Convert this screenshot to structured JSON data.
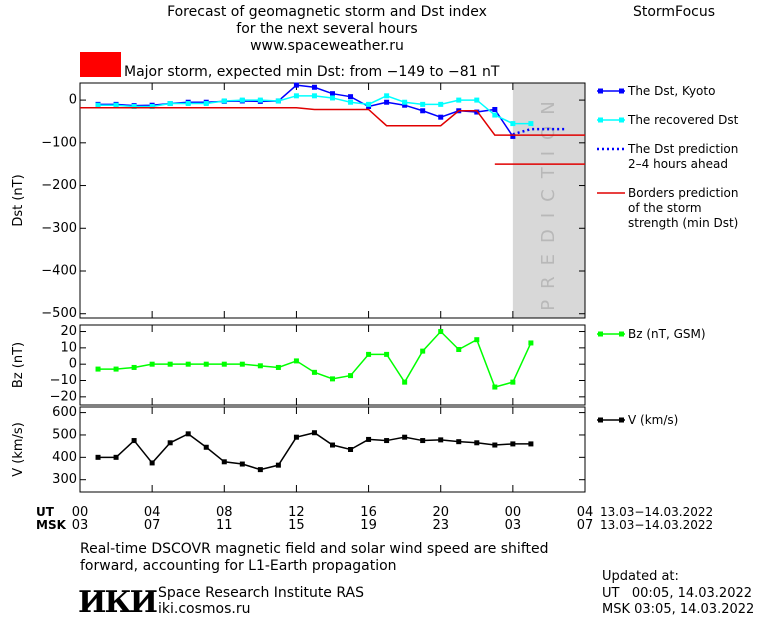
{
  "header": {
    "title_lines": [
      "Forecast of geomagnetic storm and Dst index",
      "for the next several hours",
      "www.spaceweather.ru"
    ],
    "brand": "StormFocus",
    "alert_color": "#ff0000",
    "alert_text": "Major storm, expected min Dst: from −149 to −81 nT"
  },
  "chart_data": [
    {
      "type": "line",
      "ylabel": "Dst (nT)",
      "xlim": [
        0,
        28
      ],
      "xticks": [
        0,
        4,
        8,
        12,
        16,
        20,
        24,
        28
      ],
      "ylim": [
        -510,
        40
      ],
      "yticks": [
        0,
        {
          "value": -100,
          "label": "−100"
        },
        {
          "value": -200,
          "label": "−200"
        },
        {
          "value": -300,
          "label": "−300"
        },
        {
          "value": -400,
          "label": "−400"
        },
        {
          "value": -500,
          "label": "−500"
        }
      ],
      "prediction_region": [
        24,
        28
      ],
      "prediction_label": "PREDICTION",
      "series": [
        {
          "name": "The Dst, Kyoto",
          "color": "#0000ff",
          "marker": "square",
          "dashed": false,
          "x": [
            1,
            2,
            3,
            4,
            5,
            6,
            7,
            8,
            9,
            10,
            11,
            12,
            13,
            14,
            15,
            16,
            17,
            18,
            19,
            20,
            21,
            22,
            23,
            24
          ],
          "values": [
            -10,
            -10,
            -13,
            -12,
            -8,
            -5,
            -5,
            -3,
            -2,
            -3,
            -2,
            35,
            30,
            15,
            8,
            -15,
            -5,
            -12,
            -25,
            -40,
            -25,
            -28,
            -22,
            -85
          ]
        },
        {
          "name": "The recovered Dst",
          "color": "#00ffff",
          "marker": "square",
          "dashed": false,
          "x": [
            1,
            2,
            3,
            4,
            5,
            6,
            7,
            8,
            9,
            10,
            11,
            12,
            13,
            14,
            15,
            16,
            17,
            18,
            19,
            20,
            21,
            22,
            23,
            24,
            25
          ],
          "values": [
            -12,
            -12,
            -15,
            -15,
            -8,
            -8,
            -8,
            -2,
            0,
            0,
            -2,
            10,
            10,
            5,
            -5,
            -10,
            10,
            -5,
            -10,
            -10,
            0,
            0,
            -35,
            -55,
            -55
          ]
        },
        {
          "name": "The Dst prediction\n2–4 hours ahead",
          "color": "#0000ff",
          "marker": "none",
          "dashed": true,
          "x": [
            24,
            25,
            26,
            27
          ],
          "values": [
            -80,
            -68,
            -68,
            -68
          ]
        },
        {
          "name": "Borders prediction\nof the storm\nstrength (min Dst)",
          "color": "#e00000",
          "marker": "none",
          "dashed": false,
          "x": [
            0,
            12,
            13,
            16,
            17,
            20,
            21,
            22,
            23,
            28,
            28,
            23,
            28
          ],
          "values": [
            -18,
            -18,
            -22,
            -22,
            -60,
            -60,
            -25,
            -25,
            -82,
            -82,
            null,
            -150,
            -150
          ]
        }
      ]
    },
    {
      "type": "line",
      "ylabel": "Bz (nT)",
      "xlim": [
        0,
        28
      ],
      "xticks": [
        0,
        4,
        8,
        12,
        16,
        20,
        24,
        28
      ],
      "ylim": [
        -25,
        24
      ],
      "yticks": [
        20,
        10,
        0,
        {
          "value": -10,
          "label": "−10"
        },
        {
          "value": -20,
          "label": "−20"
        }
      ],
      "series": [
        {
          "name": "Bz (nT, GSM)",
          "color": "#00ff00",
          "marker": "square",
          "dashed": false,
          "x": [
            1,
            2,
            3,
            4,
            5,
            6,
            7,
            8,
            9,
            10,
            11,
            12,
            13,
            14,
            15,
            16,
            17,
            18,
            19,
            20,
            21,
            22,
            23,
            24,
            25
          ],
          "values": [
            -3,
            -3,
            -2,
            0,
            0,
            0,
            0,
            0,
            0,
            -1,
            -2,
            2,
            -5,
            -9,
            -7,
            6,
            6,
            -11,
            8,
            20,
            9,
            15,
            -14,
            -11,
            13
          ]
        }
      ]
    },
    {
      "type": "line",
      "ylabel": "V (km/s)",
      "xlim": [
        0,
        28
      ],
      "xticks": [
        0,
        4,
        8,
        12,
        16,
        20,
        24,
        28
      ],
      "ylim": [
        245,
        625
      ],
      "yticks": [
        600,
        500,
        400,
        300
      ],
      "series": [
        {
          "name": "V (km/s)",
          "color": "#000000",
          "marker": "square",
          "dashed": false,
          "x": [
            1,
            2,
            3,
            4,
            5,
            6,
            7,
            8,
            9,
            10,
            11,
            12,
            13,
            14,
            15,
            16,
            17,
            18,
            19,
            20,
            21,
            22,
            23,
            24,
            25
          ],
          "values": [
            400,
            400,
            475,
            375,
            465,
            505,
            445,
            380,
            370,
            345,
            365,
            490,
            510,
            455,
            435,
            480,
            475,
            490,
            475,
            478,
            470,
            465,
            455,
            460,
            460
          ]
        }
      ]
    }
  ],
  "time_axis": {
    "ut_label": "UT",
    "msk_label": "MSK",
    "ut_labels": [
      "00",
      "04",
      "08",
      "12",
      "16",
      "20",
      "00",
      "04"
    ],
    "msk_labels": [
      "03",
      "07",
      "11",
      "15",
      "19",
      "23",
      "03",
      "07"
    ],
    "date_range": "13.03−14.03.2022"
  },
  "footer": {
    "note_lines": [
      "Real-time DSCOVR magnetic field and solar wind speed are shifted",
      "forward, accounting for L1-Earth propagation"
    ],
    "logo": "ИКИ",
    "institute": "Space Research Institute RAS",
    "site": "iki.cosmos.ru",
    "updated_label": "Updated at:",
    "updated_ut": "UT   00:05, 14.03.2022",
    "updated_msk": "MSK 03:05, 14.03.2022"
  }
}
